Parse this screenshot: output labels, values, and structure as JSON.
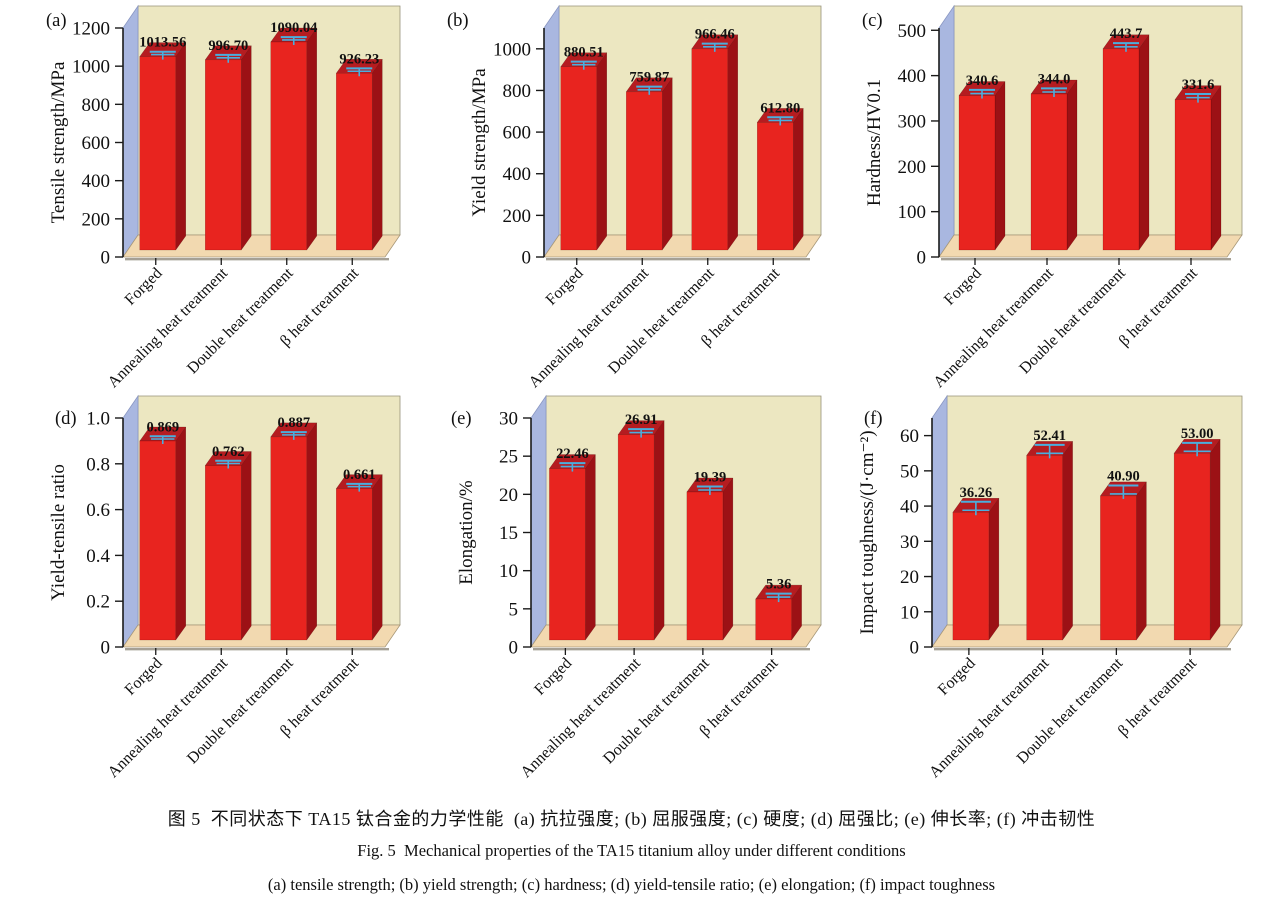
{
  "figure": {
    "caption_zh": "图 5  不同状态下 TA15 钛合金的力学性能  (a) 抗拉强度; (b) 屈服强度; (c) 硬度; (d) 屈强比; (e) 伸长率; (f) 冲击韧性",
    "caption_en": "Fig. 5  Mechanical properties of the TA15 titanium alloy under different conditions",
    "caption_sub": "(a) tensile strength; (b) yield strength; (c) hardness; (d) yield-tensile ratio; (e) elongation; (f) impact toughness"
  },
  "colors": {
    "wall_back": "#ece7c1",
    "wall_left": "#a9b7e0",
    "floor": "#f2d9b0",
    "bar_front": "#e8241f",
    "bar_top": "#b51c20",
    "bar_side": "#9c1115",
    "error_bar": "#4aaede",
    "axis": "#1a1a1a",
    "text": "#111111"
  },
  "chart_data": [
    {
      "type": "bar",
      "panel": "(a)",
      "ylabel": "Tensile strength/MPa",
      "categories": [
        "Forged",
        "Annealing heat treatment",
        "Double heat treatment",
        "β heat treatment"
      ],
      "values": [
        1013.56,
        996.7,
        1090.04,
        926.23
      ],
      "value_labels": [
        "1013.56",
        "996.70",
        "1090.04",
        "926.23"
      ],
      "yticks": [
        0,
        200,
        400,
        600,
        800,
        1000,
        1200
      ],
      "ytick_labels": [
        "0",
        "200",
        "400",
        "600",
        "800",
        "1000",
        "1200"
      ],
      "ylim": [
        0,
        1200
      ],
      "error": 15,
      "grid": false,
      "legend": "none"
    },
    {
      "type": "bar",
      "panel": "(b)",
      "ylabel": "Yield strength/MPa",
      "categories": [
        "Forged",
        "Annealing heat treatment",
        "Double heat treatment",
        "β heat treatment"
      ],
      "values": [
        880.51,
        759.87,
        966.46,
        612.8
      ],
      "value_labels": [
        "880.51",
        "759.87",
        "966.46",
        "612.80"
      ],
      "yticks": [
        0,
        200,
        400,
        600,
        800,
        1000
      ],
      "ytick_labels": [
        "0",
        "200",
        "400",
        "600",
        "800",
        "1000"
      ],
      "ylim": [
        0,
        1100
      ],
      "error": 15,
      "grid": false,
      "legend": "none"
    },
    {
      "type": "bar",
      "panel": "(c)",
      "ylabel": "Hardness/HV0.1",
      "categories": [
        "Forged",
        "Annealing heat treatment",
        "Double heat treatment",
        "β heat treatment"
      ],
      "values": [
        340.6,
        344.0,
        443.7,
        331.6
      ],
      "value_labels": [
        "340.6",
        "344.0",
        "443.7",
        "331.6"
      ],
      "yticks": [
        0,
        100,
        200,
        300,
        400,
        500
      ],
      "ytick_labels": [
        "0",
        "100",
        "200",
        "300",
        "400",
        "500"
      ],
      "ylim": [
        0,
        505
      ],
      "error": 8,
      "grid": false,
      "legend": "none"
    },
    {
      "type": "bar",
      "panel": "(d)",
      "ylabel": "Yield-tensile ratio",
      "categories": [
        "Forged",
        "Annealing heat treatment",
        "Double heat treatment",
        "β heat treatment"
      ],
      "values": [
        0.869,
        0.762,
        0.887,
        0.661
      ],
      "value_labels": [
        "0.869",
        "0.762",
        "0.887",
        "0.661"
      ],
      "yticks": [
        0,
        0.2,
        0.4,
        0.6,
        0.8,
        1.0
      ],
      "ytick_labels": [
        "0",
        "0.2",
        "0.4",
        "0.6",
        "0.8",
        "1.0"
      ],
      "ylim": [
        0,
        1.0
      ],
      "error": 0.012,
      "grid": false,
      "legend": "none"
    },
    {
      "type": "bar",
      "panel": "(e)",
      "ylabel": "Elongation/%",
      "categories": [
        "Forged",
        "Annealing heat treatment",
        "Double heat treatment",
        "β heat treatment"
      ],
      "values": [
        22.46,
        26.91,
        19.39,
        5.36
      ],
      "value_labels": [
        "22.46",
        "26.91",
        "19.39",
        "5.36"
      ],
      "yticks": [
        0,
        5,
        10,
        15,
        20,
        25,
        30
      ],
      "ytick_labels": [
        "0",
        "5",
        "10",
        "15",
        "20",
        "25",
        "30"
      ],
      "ylim": [
        0,
        30
      ],
      "error": 0.45,
      "grid": false,
      "legend": "none"
    },
    {
      "type": "bar",
      "panel": "(f)",
      "ylabel": "Impact toughness/(J·cm⁻²)",
      "categories": [
        "Forged",
        "Annealing heat treatment",
        "Double heat treatment",
        "β heat treatment"
      ],
      "values": [
        36.26,
        52.41,
        40.9,
        53.0
      ],
      "value_labels": [
        "36.26",
        "52.41",
        "40.90",
        "53.00"
      ],
      "yticks": [
        0,
        10,
        20,
        30,
        40,
        50,
        60
      ],
      "ytick_labels": [
        "0",
        "10",
        "20",
        "30",
        "40",
        "50",
        "60"
      ],
      "ylim": [
        0,
        65
      ],
      "error": 2.4,
      "grid": false,
      "legend": "none"
    }
  ]
}
